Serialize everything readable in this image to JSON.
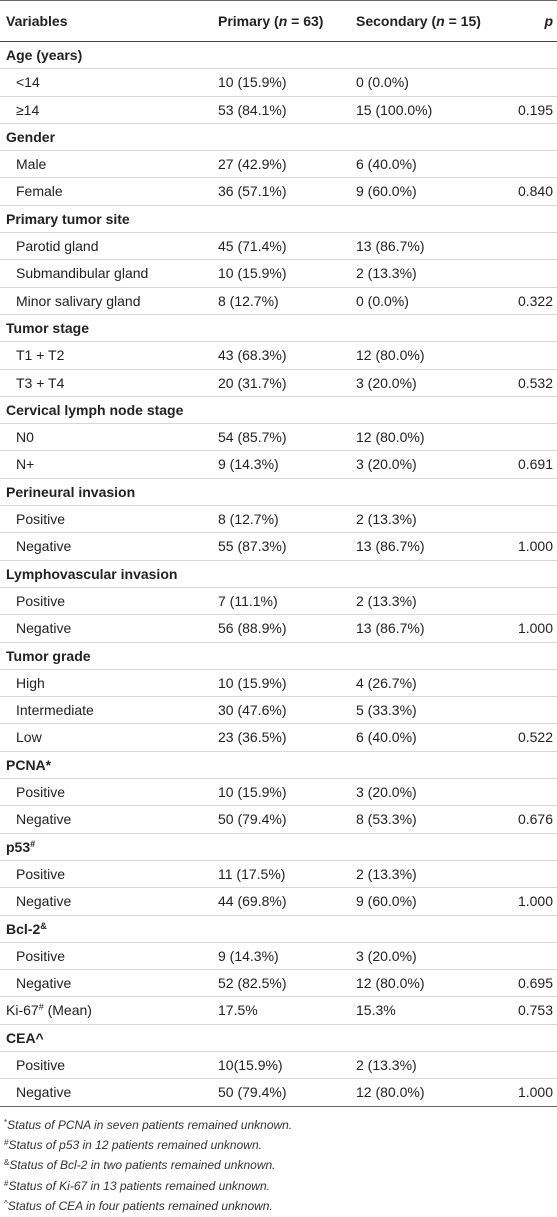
{
  "header": {
    "variables": "Variables",
    "primary_prefix": "Primary (",
    "primary_n": "n",
    "primary_suffix": " = 63)",
    "secondary_prefix": "Secondary (",
    "secondary_n": "n",
    "secondary_suffix": " = 15)",
    "p": "p"
  },
  "rows": [
    {
      "type": "section",
      "label": "Age (years)",
      "sup": "",
      "primary": "",
      "secondary": "",
      "p": ""
    },
    {
      "type": "item",
      "label": "<14",
      "sup": "",
      "primary": "10 (15.9%)",
      "secondary": "0 (0.0%)",
      "p": ""
    },
    {
      "type": "item",
      "label": "≥14",
      "sup": "",
      "primary": "53 (84.1%)",
      "secondary": "15 (100.0%)",
      "p": "0.195"
    },
    {
      "type": "section",
      "label": "Gender",
      "sup": "",
      "primary": "",
      "secondary": "",
      "p": ""
    },
    {
      "type": "item",
      "label": "Male",
      "sup": "",
      "primary": "27 (42.9%)",
      "secondary": "6 (40.0%)",
      "p": ""
    },
    {
      "type": "item",
      "label": "Female",
      "sup": "",
      "primary": "36 (57.1%)",
      "secondary": "9 (60.0%)",
      "p": "0.840"
    },
    {
      "type": "section",
      "label": "Primary tumor site",
      "sup": "",
      "primary": "",
      "secondary": "",
      "p": ""
    },
    {
      "type": "item",
      "label": "Parotid gland",
      "sup": "",
      "primary": "45 (71.4%)",
      "secondary": "13 (86.7%)",
      "p": ""
    },
    {
      "type": "item",
      "label": "Submandibular gland",
      "sup": "",
      "primary": "10 (15.9%)",
      "secondary": "2 (13.3%)",
      "p": ""
    },
    {
      "type": "item",
      "label": "Minor salivary gland",
      "sup": "",
      "primary": "8 (12.7%)",
      "secondary": "0 (0.0%)",
      "p": "0.322"
    },
    {
      "type": "section",
      "label": "Tumor stage",
      "sup": "",
      "primary": "",
      "secondary": "",
      "p": ""
    },
    {
      "type": "item",
      "label": "T1 + T2",
      "sup": "",
      "primary": "43 (68.3%)",
      "secondary": "12 (80.0%)",
      "p": ""
    },
    {
      "type": "item",
      "label": "T3 + T4",
      "sup": "",
      "primary": "20 (31.7%)",
      "secondary": "3 (20.0%)",
      "p": "0.532"
    },
    {
      "type": "section",
      "label": "Cervical lymph node stage",
      "sup": "",
      "primary": "",
      "secondary": "",
      "p": ""
    },
    {
      "type": "item",
      "label": "N0",
      "sup": "",
      "primary": "54 (85.7%)",
      "secondary": "12 (80.0%)",
      "p": ""
    },
    {
      "type": "item",
      "label": "N+",
      "sup": "",
      "primary": "9 (14.3%)",
      "secondary": "3 (20.0%)",
      "p": "0.691"
    },
    {
      "type": "section",
      "label": "Perineural invasion",
      "sup": "",
      "primary": "",
      "secondary": "",
      "p": ""
    },
    {
      "type": "item",
      "label": "Positive",
      "sup": "",
      "primary": "8 (12.7%)",
      "secondary": "2 (13.3%)",
      "p": ""
    },
    {
      "type": "item",
      "label": "Negative",
      "sup": "",
      "primary": "55 (87.3%)",
      "secondary": "13 (86.7%)",
      "p": "1.000"
    },
    {
      "type": "section",
      "label": "Lymphovascular invasion",
      "sup": "",
      "primary": "",
      "secondary": "",
      "p": ""
    },
    {
      "type": "item",
      "label": "Positive",
      "sup": "",
      "primary": "7 (11.1%)",
      "secondary": "2 (13.3%)",
      "p": ""
    },
    {
      "type": "item",
      "label": "Negative",
      "sup": "",
      "primary": "56 (88.9%)",
      "secondary": "13 (86.7%)",
      "p": "1.000"
    },
    {
      "type": "section",
      "label": "Tumor grade",
      "sup": "",
      "primary": "",
      "secondary": "",
      "p": ""
    },
    {
      "type": "item",
      "label": "High",
      "sup": "",
      "primary": "10 (15.9%)",
      "secondary": "4 (26.7%)",
      "p": ""
    },
    {
      "type": "item",
      "label": "Intermediate",
      "sup": "",
      "primary": "30 (47.6%)",
      "secondary": "5 (33.3%)",
      "p": ""
    },
    {
      "type": "item",
      "label": "Low",
      "sup": "",
      "primary": "23 (36.5%)",
      "secondary": "6 (40.0%)",
      "p": "0.522"
    },
    {
      "type": "section",
      "label": "PCNA*",
      "sup": "",
      "primary": "",
      "secondary": "",
      "p": ""
    },
    {
      "type": "item",
      "label": "Positive",
      "sup": "",
      "primary": "10 (15.9%)",
      "secondary": "3 (20.0%)",
      "p": ""
    },
    {
      "type": "item",
      "label": "Negative",
      "sup": "",
      "primary": "50 (79.4%)",
      "secondary": "8 (53.3%)",
      "p": "0.676"
    },
    {
      "type": "section",
      "label": "p53",
      "sup": "#",
      "primary": "",
      "secondary": "",
      "p": ""
    },
    {
      "type": "item",
      "label": "Positive",
      "sup": "",
      "primary": "11 (17.5%)",
      "secondary": "2 (13.3%)",
      "p": ""
    },
    {
      "type": "item",
      "label": "Negative",
      "sup": "",
      "primary": "44 (69.8%)",
      "secondary": "9 (60.0%)",
      "p": "1.000"
    },
    {
      "type": "section",
      "label": "Bcl-2",
      "sup": "&",
      "primary": "",
      "secondary": "",
      "p": ""
    },
    {
      "type": "item",
      "label": "Positive",
      "sup": "",
      "primary": "9 (14.3%)",
      "secondary": "3 (20.0%)",
      "p": ""
    },
    {
      "type": "item",
      "label": "Negative",
      "sup": "",
      "primary": "52 (82.5%)",
      "secondary": "12 (80.0%)",
      "p": "0.695"
    },
    {
      "type": "plain",
      "label": "Ki-67",
      "sup": "#",
      "suffix": " (Mean)",
      "primary": "17.5%",
      "secondary": "15.3%",
      "p": "0.753"
    },
    {
      "type": "section",
      "label": "CEA^",
      "sup": "",
      "primary": "",
      "secondary": "",
      "p": ""
    },
    {
      "type": "item",
      "label": "Positive",
      "sup": "",
      "primary": "10(15.9%)",
      "secondary": "2 (13.3%)",
      "p": ""
    },
    {
      "type": "item",
      "label": "Negative",
      "sup": "",
      "primary": "50 (79.4%)",
      "secondary": "12 (80.0%)",
      "p": "1.000"
    }
  ],
  "footnotes": [
    {
      "mark": "*",
      "text": "Status of PCNA in seven patients remained unknown."
    },
    {
      "mark": "#",
      "text": "Status of p53 in 12 patients remained unknown."
    },
    {
      "mark": "&",
      "text": "Status of Bcl-2 in two patients remained unknown."
    },
    {
      "mark": "#",
      "text": "Status of Ki-67 in 13 patients remained unknown."
    },
    {
      "mark": "^",
      "text": "Status of CEA in four patients remained unknown."
    }
  ]
}
